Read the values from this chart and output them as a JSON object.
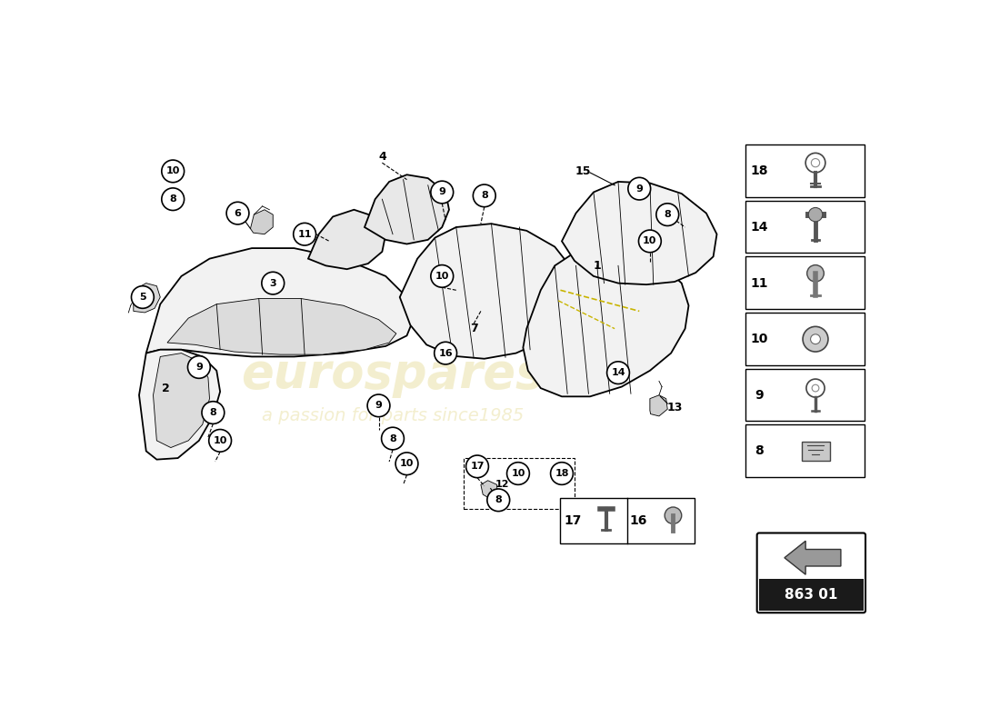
{
  "bg_color": "#ffffff",
  "part_number": "863 01",
  "watermark1": "eurospares",
  "watermark2": "a passion for parts since1985"
}
